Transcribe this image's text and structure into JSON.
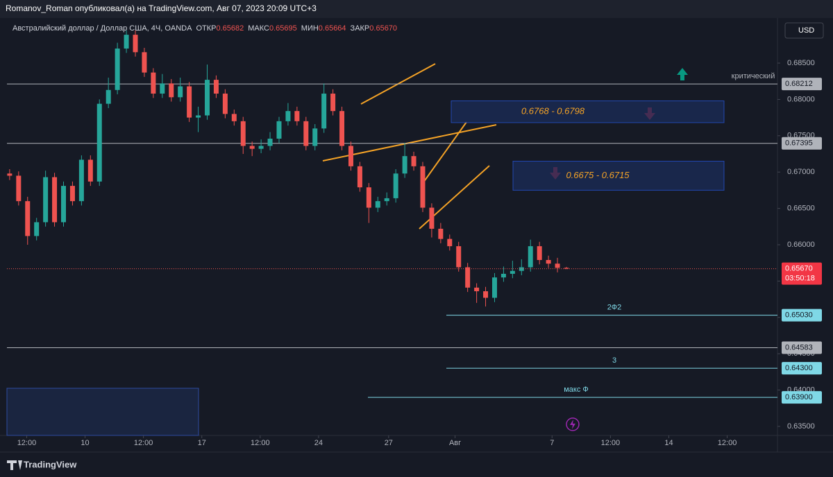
{
  "header": {
    "publisher": "Romanov_Roman опубликовал(а) на TradingView.com, Авг 07, 2023 20:09 UTC+3",
    "currency": "USD",
    "footer": "TradingView"
  },
  "chart_data": {
    "type": "candlestick",
    "title": "Австралийский доллар / Доллар США, 4Ч, OANDA",
    "ohlc": [
      {
        "name": "ОТКР",
        "value": 0.65682,
        "label": "0.65682"
      },
      {
        "name": "МАКС",
        "value": 0.65695,
        "label": "0.65695"
      },
      {
        "name": "МИН",
        "value": 0.65664,
        "label": "0.65664"
      },
      {
        "name": "ЗАКР",
        "value": 0.6567,
        "label": "0.65670"
      }
    ],
    "open": [
      0.6698,
      0.6695,
      0.666,
      0.6612,
      0.6631,
      0.6693,
      0.6631,
      0.6681,
      0.666,
      0.6717,
      0.6687,
      0.6794,
      0.6813,
      0.687,
      0.6889,
      0.6865,
      0.6837,
      0.6808,
      0.6822,
      0.6803,
      0.6818,
      0.6775,
      0.6778,
      0.6827,
      0.6808,
      0.678,
      0.677,
      0.6736,
      0.6732,
      0.6736,
      0.6746,
      0.677,
      0.6784,
      0.677,
      0.6736,
      0.676,
      0.6808,
      0.6784,
      0.6736,
      0.6708,
      0.6679,
      0.6651,
      0.666,
      0.6664,
      0.6698,
      0.6722,
      0.6708,
      0.6651,
      0.6622,
      0.6608,
      0.6598,
      0.6569,
      0.6541,
      0.6536,
      0.6527,
      0.6555,
      0.656,
      0.6564,
      0.6569,
      0.6598,
      0.6579,
      0.6574,
      0.65682
    ],
    "high": [
      0.6704,
      0.6701,
      0.6666,
      0.6637,
      0.6702,
      0.6699,
      0.6687,
      0.6687,
      0.6723,
      0.6723,
      0.68,
      0.683,
      0.6878,
      0.6895,
      0.6895,
      0.6871,
      0.6843,
      0.6835,
      0.6828,
      0.683,
      0.6824,
      0.679,
      0.6848,
      0.6833,
      0.6814,
      0.6786,
      0.6776,
      0.6742,
      0.6745,
      0.6755,
      0.6776,
      0.6795,
      0.679,
      0.6776,
      0.6766,
      0.6822,
      0.6814,
      0.679,
      0.6742,
      0.6714,
      0.6685,
      0.6666,
      0.6672,
      0.6704,
      0.674,
      0.6728,
      0.6714,
      0.6657,
      0.663,
      0.6614,
      0.6604,
      0.6575,
      0.6547,
      0.6542,
      0.6561,
      0.657,
      0.6578,
      0.658,
      0.6607,
      0.6604,
      0.6585,
      0.6582,
      0.65695
    ],
    "low": [
      0.6689,
      0.6654,
      0.66,
      0.6606,
      0.6625,
      0.6625,
      0.6625,
      0.6654,
      0.6654,
      0.6681,
      0.6681,
      0.6788,
      0.6807,
      0.6864,
      0.6859,
      0.6831,
      0.6802,
      0.6802,
      0.6797,
      0.6797,
      0.6769,
      0.6755,
      0.6772,
      0.6802,
      0.6774,
      0.6764,
      0.6725,
      0.6722,
      0.6726,
      0.673,
      0.674,
      0.6764,
      0.6764,
      0.673,
      0.673,
      0.6754,
      0.6778,
      0.673,
      0.6702,
      0.6673,
      0.663,
      0.6645,
      0.6654,
      0.6658,
      0.6692,
      0.6702,
      0.6645,
      0.661,
      0.6602,
      0.6592,
      0.6563,
      0.6535,
      0.652,
      0.6515,
      0.6521,
      0.6549,
      0.6554,
      0.6558,
      0.6563,
      0.6573,
      0.6568,
      0.6562,
      0.65664
    ],
    "close": [
      0.6695,
      0.666,
      0.6612,
      0.6631,
      0.6693,
      0.6631,
      0.6681,
      0.666,
      0.6717,
      0.6687,
      0.6794,
      0.6813,
      0.687,
      0.6889,
      0.6865,
      0.6837,
      0.6808,
      0.6822,
      0.6803,
      0.6818,
      0.6775,
      0.6778,
      0.6827,
      0.6808,
      0.678,
      0.677,
      0.6736,
      0.6732,
      0.6736,
      0.6746,
      0.677,
      0.6784,
      0.677,
      0.6736,
      0.676,
      0.6808,
      0.6784,
      0.6736,
      0.6708,
      0.6679,
      0.6651,
      0.666,
      0.6664,
      0.6698,
      0.6722,
      0.6708,
      0.6651,
      0.6622,
      0.6608,
      0.6598,
      0.6569,
      0.6541,
      0.6536,
      0.6527,
      0.6555,
      0.656,
      0.6564,
      0.6569,
      0.6598,
      0.6579,
      0.6574,
      0.65682,
      0.6567
    ],
    "up_color": "#26a69a",
    "down_color": "#ef5350",
    "ylim": [
      0.63376,
      0.69082
    ],
    "yticks": [
      {
        "value": 0.685,
        "label": "0.68500"
      },
      {
        "value": 0.68,
        "label": "0.68000"
      },
      {
        "value": 0.675,
        "label": "0.67500"
      },
      {
        "value": 0.67,
        "label": "0.67000"
      },
      {
        "value": 0.665,
        "label": "0.66500"
      },
      {
        "value": 0.66,
        "label": "0.66000"
      },
      {
        "value": 0.655,
        "label": "0.65500"
      },
      {
        "value": 0.65,
        "label": "0.65000"
      },
      {
        "value": 0.645,
        "label": "0.64500"
      },
      {
        "value": 0.64,
        "label": "0.64000"
      },
      {
        "value": 0.635,
        "label": "0.63500"
      }
    ],
    "xlim": [
      -0.3,
      85.5
    ],
    "xticks": [
      {
        "value": 1.9,
        "label": "12:00"
      },
      {
        "value": 8.4,
        "label": "10"
      },
      {
        "value": 14.9,
        "label": "12:00"
      },
      {
        "value": 21.4,
        "label": "17"
      },
      {
        "value": 27.9,
        "label": "12:00"
      },
      {
        "value": 34.4,
        "label": "24"
      },
      {
        "value": 42.2,
        "label": "27"
      },
      {
        "value": 49.6,
        "label": "Авг"
      },
      {
        "value": 60.4,
        "label": "7"
      },
      {
        "value": 66.9,
        "label": "12:00"
      },
      {
        "value": 73.4,
        "label": "14"
      },
      {
        "value": 79.9,
        "label": "12:00"
      }
    ],
    "last_price": {
      "value": 0.6567,
      "label": "0.65670"
    },
    "countdown": "03:50:18",
    "levels": [
      {
        "price": {
          "value": 0.68212,
          "label": "0.68212"
        },
        "text": "критический",
        "color": "#b0b3ba"
      },
      {
        "price": {
          "value": 0.67395,
          "label": "0.67395"
        },
        "color": "#b0b3ba"
      },
      {
        "price": {
          "value": 0.6503,
          "label": "0.65030"
        },
        "text": "2Ф2",
        "color": "#7fd8e6"
      },
      {
        "price": {
          "value": 0.64583,
          "label": "0.64583"
        },
        "color": "#b0b3ba"
      },
      {
        "price": {
          "value": 0.643,
          "label": "0.64300"
        },
        "text": "3",
        "color": "#7fd8e6"
      },
      {
        "price": {
          "value": 0.639,
          "label": "0.63900"
        },
        "text": "макс Ф",
        "color": "#7fd8e6"
      }
    ],
    "zones": [
      {
        "low": 0.6768,
        "high": 0.6798,
        "label": "0.6768 - 0.6798"
      },
      {
        "low": 0.6675,
        "high": 0.6715,
        "label": "0.6675 - 0.6715"
      }
    ]
  }
}
